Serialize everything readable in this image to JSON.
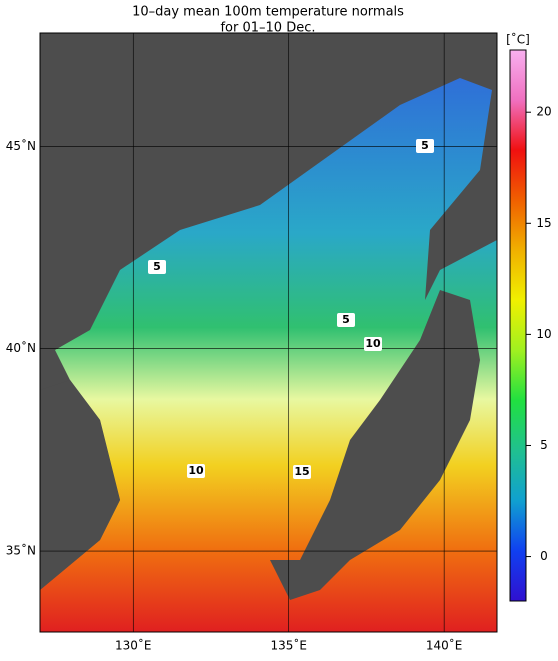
{
  "map": {
    "title": "10–day mean 100m temperature normals",
    "subtitle": "for 01–10 Dec.",
    "lonlim": [
      127,
      141.7
    ],
    "latlim": [
      33,
      47.8
    ],
    "lon_ticks": [
      {
        "value": 130,
        "label": "130˚E"
      },
      {
        "value": 135,
        "label": "135˚E"
      },
      {
        "value": 140,
        "label": "140˚E"
      }
    ],
    "lat_ticks": [
      {
        "value": 35,
        "label": "35˚N"
      },
      {
        "value": 40,
        "label": "40˚N"
      },
      {
        "value": 45,
        "label": "45˚N"
      }
    ],
    "contour_labels": [
      5,
      5,
      5,
      10,
      10,
      15
    ],
    "colorbar": {
      "unit": "[˚C]",
      "lim": [
        -2,
        22.8
      ],
      "ticks": [
        0,
        5,
        10,
        15,
        20
      ],
      "colors": [
        "#3010d0",
        "#1040f0",
        "#10a0d0",
        "#20c090",
        "#20e040",
        "#a0f020",
        "#f0f000",
        "#f0b000",
        "#f06000",
        "#f01010",
        "#f070c0",
        "#f8b0f0"
      ]
    }
  }
}
